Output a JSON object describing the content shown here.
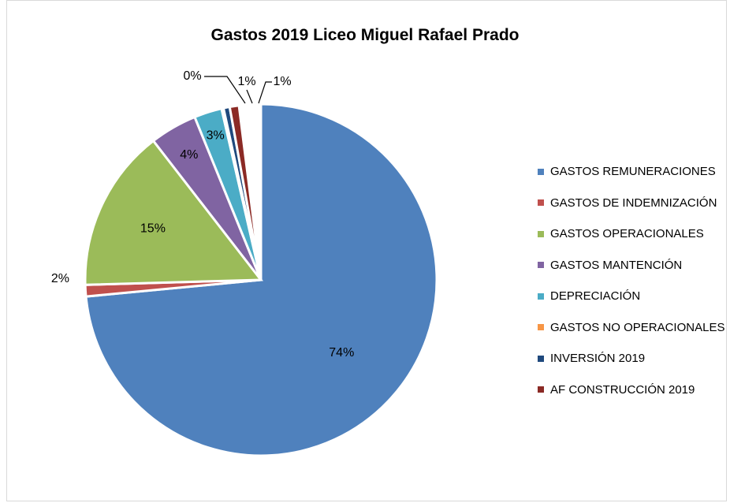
{
  "chart_data": {
    "type": "pie",
    "title": "Gastos 2019 Liceo Miguel Rafael Prado",
    "legend_position": "right",
    "slices": [
      {
        "name": "GASTOS REMUNERACIONES",
        "value": 74,
        "label": "74%",
        "color": "#4f81bd"
      },
      {
        "name": "GASTOS DE INDEMNIZACIÓN",
        "value": 2,
        "label": "2%",
        "color": "#c0504d"
      },
      {
        "name": "GASTOS OPERACIONALES",
        "value": 15,
        "label": "15%",
        "color": "#9bbb59"
      },
      {
        "name": "GASTOS MANTENCIÓN",
        "value": 4,
        "label": "4%",
        "color": "#8064a2"
      },
      {
        "name": "DEPRECIACIÓN",
        "value": 3,
        "label": "3%",
        "color": "#4bacc6"
      },
      {
        "name": "GASTOS NO OPERACIONALES",
        "value": 0,
        "label": "0%",
        "color": "#f79646"
      },
      {
        "name": "INVERSIÓN 2019",
        "value": 1,
        "label": "1%",
        "color": "#1f497d"
      },
      {
        "name": "AF CONSTRUCCIÓN 2019",
        "value": 1,
        "label": "1%",
        "color": "#8b2a25"
      }
    ]
  }
}
